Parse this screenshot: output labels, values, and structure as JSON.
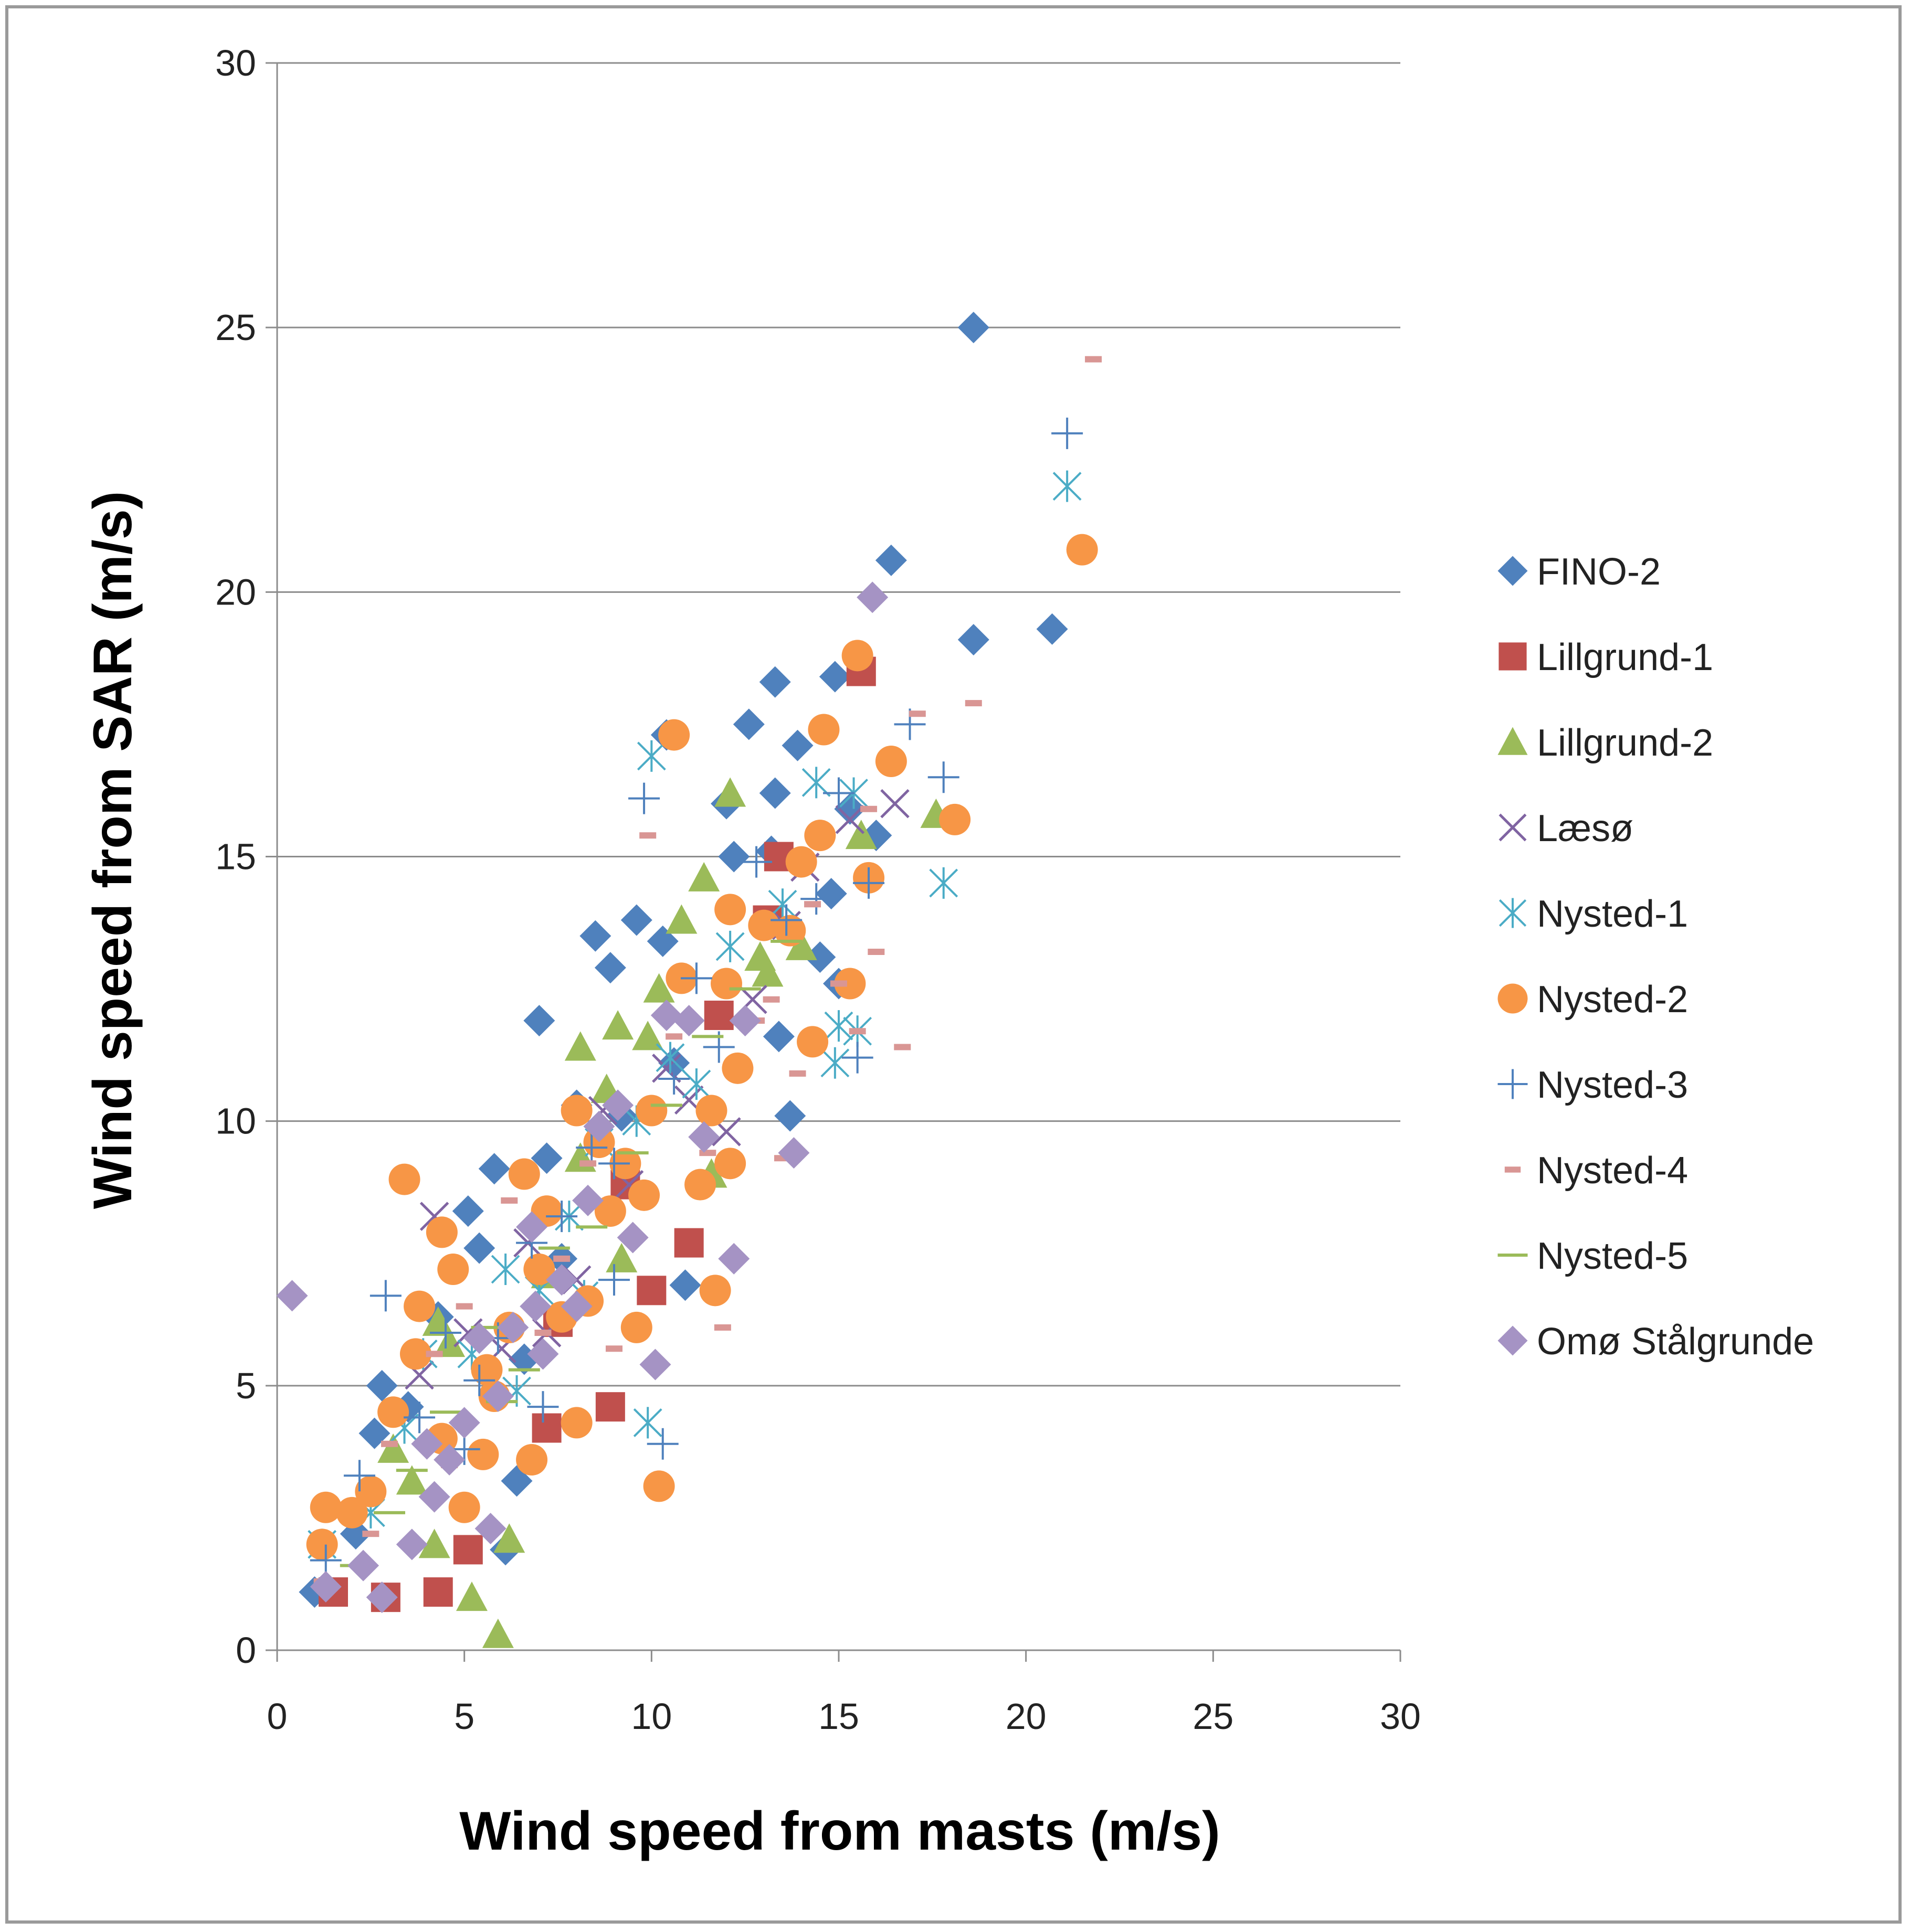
{
  "chart_data": {
    "type": "scatter",
    "xlabel": "Wind speed from masts (m/s)",
    "ylabel": "Wind speed from SAR (m/s)",
    "xlim": [
      0,
      30
    ],
    "ylim": [
      0,
      30
    ],
    "xticks": [
      "0",
      "5",
      "10",
      "15",
      "20",
      "25",
      "30"
    ],
    "yticks": [
      "0",
      "5",
      "10",
      "15",
      "20",
      "25",
      "30"
    ],
    "grid": "horizontal",
    "legend_position": "right",
    "series": [
      {
        "name": "FINO-2",
        "marker": "diamond",
        "color": "#4f81bd",
        "points": [
          [
            1.0,
            1.1
          ],
          [
            2.1,
            2.2
          ],
          [
            2.6,
            4.1
          ],
          [
            2.8,
            5.0
          ],
          [
            3.5,
            4.6
          ],
          [
            4.3,
            6.3
          ],
          [
            5.1,
            8.3
          ],
          [
            5.4,
            7.6
          ],
          [
            5.8,
            9.1
          ],
          [
            6.4,
            3.2
          ],
          [
            6.1,
            1.9
          ],
          [
            7.0,
            11.9
          ],
          [
            7.2,
            9.3
          ],
          [
            8.0,
            10.3
          ],
          [
            8.5,
            13.5
          ],
          [
            8.9,
            12.9
          ],
          [
            9.6,
            13.8
          ],
          [
            10.3,
            13.4
          ],
          [
            10.4,
            17.3
          ],
          [
            10.9,
            6.9
          ],
          [
            11.6,
            10.2
          ],
          [
            12.0,
            16.0
          ],
          [
            12.2,
            15.0
          ],
          [
            12.6,
            17.5
          ],
          [
            13.2,
            15.1
          ],
          [
            13.3,
            16.2
          ],
          [
            13.3,
            18.3
          ],
          [
            13.4,
            11.6
          ],
          [
            13.7,
            10.1
          ],
          [
            13.9,
            17.1
          ],
          [
            14.5,
            13.1
          ],
          [
            14.8,
            14.3
          ],
          [
            14.9,
            18.4
          ],
          [
            15.0,
            12.6
          ],
          [
            15.3,
            15.9
          ],
          [
            16.0,
            15.4
          ],
          [
            16.4,
            20.6
          ],
          [
            18.6,
            25.0
          ],
          [
            18.6,
            19.1
          ],
          [
            20.7,
            19.3
          ],
          [
            6.6,
            5.5
          ],
          [
            7.6,
            7.4
          ],
          [
            9.2,
            10.1
          ],
          [
            10.6,
            11.1
          ]
        ]
      },
      {
        "name": "Lillgrund-1",
        "marker": "square",
        "color": "#c0504d",
        "points": [
          [
            1.5,
            1.1
          ],
          [
            2.9,
            1.0
          ],
          [
            4.3,
            1.1
          ],
          [
            5.1,
            1.9
          ],
          [
            7.2,
            4.2
          ],
          [
            8.9,
            4.6
          ],
          [
            10.0,
            6.8
          ],
          [
            11.0,
            7.7
          ],
          [
            11.8,
            12.0
          ],
          [
            13.4,
            15.0
          ],
          [
            13.1,
            13.8
          ],
          [
            15.6,
            18.5
          ],
          [
            7.5,
            6.2
          ],
          [
            9.3,
            8.8
          ]
        ]
      },
      {
        "name": "Lillgrund-2",
        "marker": "triangle",
        "color": "#9bbb59",
        "points": [
          [
            5.2,
            1.0
          ],
          [
            5.9,
            0.3
          ],
          [
            6.2,
            2.1
          ],
          [
            4.2,
            2.0
          ],
          [
            3.1,
            3.8
          ],
          [
            3.6,
            3.2
          ],
          [
            4.6,
            5.8
          ],
          [
            4.3,
            6.2
          ],
          [
            7.2,
            7.1
          ],
          [
            8.1,
            9.3
          ],
          [
            8.1,
            11.4
          ],
          [
            8.8,
            10.6
          ],
          [
            9.1,
            11.8
          ],
          [
            9.9,
            11.6
          ],
          [
            10.2,
            12.5
          ],
          [
            10.8,
            13.8
          ],
          [
            11.4,
            14.6
          ],
          [
            12.1,
            16.2
          ],
          [
            12.9,
            13.1
          ],
          [
            13.1,
            12.8
          ],
          [
            14.0,
            13.3
          ],
          [
            15.6,
            15.4
          ],
          [
            17.6,
            15.8
          ],
          [
            9.2,
            7.4
          ],
          [
            11.6,
            9.0
          ]
        ]
      },
      {
        "name": "Læsø",
        "marker": "x",
        "color": "#8064a2",
        "points": [
          [
            3.8,
            5.2
          ],
          [
            4.2,
            8.2
          ],
          [
            5.1,
            6.0
          ],
          [
            6.0,
            5.7
          ],
          [
            7.2,
            6.0
          ],
          [
            8.0,
            7.0
          ],
          [
            9.4,
            8.8
          ],
          [
            10.4,
            11.0
          ],
          [
            11.0,
            10.4
          ],
          [
            12.0,
            9.8
          ],
          [
            12.7,
            12.3
          ],
          [
            13.6,
            13.7
          ],
          [
            14.1,
            14.8
          ],
          [
            15.3,
            15.7
          ],
          [
            16.5,
            16.0
          ],
          [
            6.7,
            7.7
          ],
          [
            8.7,
            10.2
          ]
        ]
      },
      {
        "name": "Nysted-1",
        "marker": "asterisk",
        "color": "#4bacc6",
        "points": [
          [
            1.2,
            2.0
          ],
          [
            2.5,
            2.6
          ],
          [
            3.4,
            4.2
          ],
          [
            3.9,
            5.6
          ],
          [
            5.2,
            5.6
          ],
          [
            6.1,
            7.2
          ],
          [
            7.0,
            6.8
          ],
          [
            7.8,
            8.2
          ],
          [
            8.6,
            9.6
          ],
          [
            9.6,
            10.0
          ],
          [
            9.9,
            4.3
          ],
          [
            10.0,
            16.9
          ],
          [
            10.5,
            11.2
          ],
          [
            11.2,
            10.7
          ],
          [
            12.1,
            13.3
          ],
          [
            13.5,
            14.1
          ],
          [
            14.4,
            16.4
          ],
          [
            14.9,
            11.1
          ],
          [
            15.0,
            11.8
          ],
          [
            15.5,
            11.7
          ],
          [
            15.4,
            16.2
          ],
          [
            17.8,
            14.5
          ],
          [
            21.1,
            22.0
          ],
          [
            6.4,
            4.9
          ],
          [
            8.2,
            6.7
          ]
        ]
      },
      {
        "name": "Nysted-2",
        "marker": "circle",
        "color": "#f79646",
        "points": [
          [
            1.2,
            2.0
          ],
          [
            1.3,
            2.7
          ],
          [
            2.0,
            2.6
          ],
          [
            2.5,
            3.0
          ],
          [
            3.1,
            4.5
          ],
          [
            3.4,
            8.9
          ],
          [
            3.7,
            5.6
          ],
          [
            3.8,
            6.5
          ],
          [
            4.4,
            7.9
          ],
          [
            4.7,
            7.2
          ],
          [
            5.0,
            2.7
          ],
          [
            5.5,
            3.7
          ],
          [
            5.8,
            4.8
          ],
          [
            6.2,
            6.1
          ],
          [
            6.6,
            9.0
          ],
          [
            6.8,
            3.6
          ],
          [
            7.2,
            8.3
          ],
          [
            7.6,
            6.3
          ],
          [
            8.0,
            10.2
          ],
          [
            8.0,
            4.3
          ],
          [
            8.6,
            9.6
          ],
          [
            8.9,
            8.3
          ],
          [
            9.3,
            9.2
          ],
          [
            9.6,
            6.1
          ],
          [
            10.0,
            10.2
          ],
          [
            10.2,
            3.1
          ],
          [
            10.6,
            17.3
          ],
          [
            10.8,
            12.7
          ],
          [
            11.3,
            8.8
          ],
          [
            11.7,
            6.8
          ],
          [
            12.0,
            12.6
          ],
          [
            12.1,
            14.0
          ],
          [
            12.3,
            11.0
          ],
          [
            13.0,
            13.7
          ],
          [
            13.7,
            13.6
          ],
          [
            14.0,
            14.9
          ],
          [
            14.3,
            11.5
          ],
          [
            14.5,
            15.4
          ],
          [
            14.6,
            17.4
          ],
          [
            15.3,
            12.6
          ],
          [
            15.5,
            18.8
          ],
          [
            15.8,
            14.6
          ],
          [
            16.4,
            16.8
          ],
          [
            18.1,
            15.7
          ],
          [
            21.5,
            20.8
          ],
          [
            4.4,
            4.0
          ],
          [
            5.6,
            5.3
          ],
          [
            7.0,
            7.2
          ],
          [
            9.8,
            8.6
          ],
          [
            11.6,
            10.2
          ],
          [
            12.1,
            9.2
          ],
          [
            8.3,
            6.6
          ]
        ]
      },
      {
        "name": "Nysted-3",
        "marker": "plus",
        "color": "#4f81bd",
        "points": [
          [
            1.3,
            1.7
          ],
          [
            2.2,
            3.3
          ],
          [
            2.9,
            6.7
          ],
          [
            3.8,
            4.4
          ],
          [
            4.5,
            6.0
          ],
          [
            5.0,
            3.8
          ],
          [
            5.9,
            5.9
          ],
          [
            6.8,
            7.7
          ],
          [
            7.6,
            8.2
          ],
          [
            8.4,
            9.5
          ],
          [
            9.0,
            9.2
          ],
          [
            9.8,
            16.1
          ],
          [
            10.3,
            3.9
          ],
          [
            10.6,
            10.8
          ],
          [
            11.2,
            12.7
          ],
          [
            11.8,
            11.4
          ],
          [
            12.8,
            14.9
          ],
          [
            13.6,
            13.8
          ],
          [
            14.4,
            14.2
          ],
          [
            15.0,
            16.2
          ],
          [
            15.5,
            11.2
          ],
          [
            15.8,
            14.5
          ],
          [
            16.9,
            17.5
          ],
          [
            17.8,
            16.5
          ],
          [
            21.1,
            23.0
          ],
          [
            5.4,
            5.1
          ],
          [
            7.1,
            4.6
          ],
          [
            9.0,
            7.0
          ]
        ]
      },
      {
        "name": "Nysted-4",
        "marker": "dash",
        "color": "#d99694",
        "points": [
          [
            1.2,
            1.3
          ],
          [
            2.5,
            2.2
          ],
          [
            3.0,
            3.9
          ],
          [
            4.2,
            5.6
          ],
          [
            5.0,
            6.5
          ],
          [
            6.2,
            8.5
          ],
          [
            7.1,
            6.0
          ],
          [
            8.3,
            9.2
          ],
          [
            9.0,
            5.7
          ],
          [
            9.9,
            15.4
          ],
          [
            10.6,
            11.6
          ],
          [
            11.5,
            9.4
          ],
          [
            11.9,
            6.1
          ],
          [
            12.8,
            11.9
          ],
          [
            13.2,
            12.3
          ],
          [
            13.5,
            9.3
          ],
          [
            13.9,
            10.9
          ],
          [
            14.3,
            14.1
          ],
          [
            15.0,
            12.6
          ],
          [
            15.5,
            11.7
          ],
          [
            15.8,
            15.9
          ],
          [
            16.0,
            13.2
          ],
          [
            16.7,
            11.4
          ],
          [
            17.1,
            17.7
          ],
          [
            18.6,
            17.9
          ],
          [
            21.8,
            24.4
          ],
          [
            4.6,
            3.5
          ],
          [
            7.6,
            7.4
          ]
        ]
      },
      {
        "name": "Nysted-5",
        "marker": "hline",
        "color": "#9bbb59",
        "points": [
          [
            2.1,
            1.6
          ],
          [
            3.6,
            3.4
          ],
          [
            4.5,
            4.5
          ],
          [
            5.6,
            6.1
          ],
          [
            6.6,
            5.3
          ],
          [
            7.4,
            7.6
          ],
          [
            8.4,
            8.0
          ],
          [
            9.5,
            9.4
          ],
          [
            10.4,
            10.3
          ],
          [
            11.5,
            11.6
          ],
          [
            12.5,
            12.5
          ],
          [
            13.6,
            13.4
          ],
          [
            3.0,
            2.6
          ],
          [
            6.0,
            4.7
          ]
        ]
      },
      {
        "name": "Omø Stålgrunde",
        "marker": "diamond",
        "color": "#a593c4",
        "points": [
          [
            0.4,
            6.7
          ],
          [
            1.3,
            1.2
          ],
          [
            2.3,
            1.6
          ],
          [
            2.8,
            1.0
          ],
          [
            3.6,
            2.0
          ],
          [
            4.0,
            3.9
          ],
          [
            4.6,
            3.6
          ],
          [
            5.0,
            4.3
          ],
          [
            5.7,
            2.3
          ],
          [
            5.9,
            4.8
          ],
          [
            6.3,
            6.1
          ],
          [
            6.8,
            8.0
          ],
          [
            7.1,
            5.6
          ],
          [
            7.6,
            7.0
          ],
          [
            8.3,
            8.5
          ],
          [
            8.6,
            9.9
          ],
          [
            9.1,
            10.3
          ],
          [
            10.1,
            5.4
          ],
          [
            10.4,
            12.0
          ],
          [
            11.0,
            11.9
          ],
          [
            11.4,
            9.7
          ],
          [
            12.2,
            7.4
          ],
          [
            12.5,
            11.9
          ],
          [
            13.8,
            9.4
          ],
          [
            15.9,
            19.9
          ],
          [
            4.2,
            2.9
          ],
          [
            5.4,
            5.9
          ],
          [
            6.9,
            6.5
          ],
          [
            8.0,
            6.5
          ],
          [
            9.5,
            7.8
          ]
        ]
      }
    ]
  }
}
